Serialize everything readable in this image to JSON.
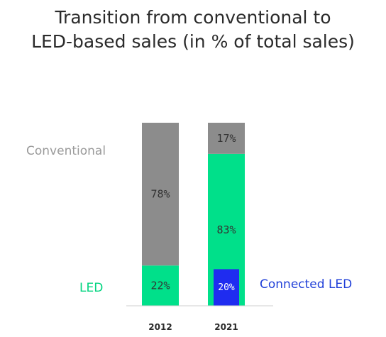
{
  "chart_data": {
    "type": "bar",
    "stacked": true,
    "title_lines": [
      "Transition from conventional to",
      "LED-based sales (in % of total sales)"
    ],
    "categories": [
      "2012",
      "2021"
    ],
    "series": [
      {
        "name": "LED",
        "values": [
          22,
          83
        ],
        "color": "#00e08a",
        "labels": [
          "22%",
          "83%"
        ]
      },
      {
        "name": "Conventional",
        "values": [
          78,
          17
        ],
        "color": "#8c8c8c",
        "labels": [
          "78%",
          "17%"
        ]
      }
    ],
    "overlay": {
      "name": "Connected LED",
      "category": "2021",
      "value": 20,
      "label": "20%",
      "color": "#1f2cf0"
    },
    "ylim": [
      0,
      100
    ],
    "legend": [
      {
        "text": "Conventional",
        "color": "#9a9a9a"
      },
      {
        "text": "LED",
        "color": "#00d47f"
      },
      {
        "text": "Connected LED",
        "color": "#1f3fd8"
      }
    ]
  }
}
